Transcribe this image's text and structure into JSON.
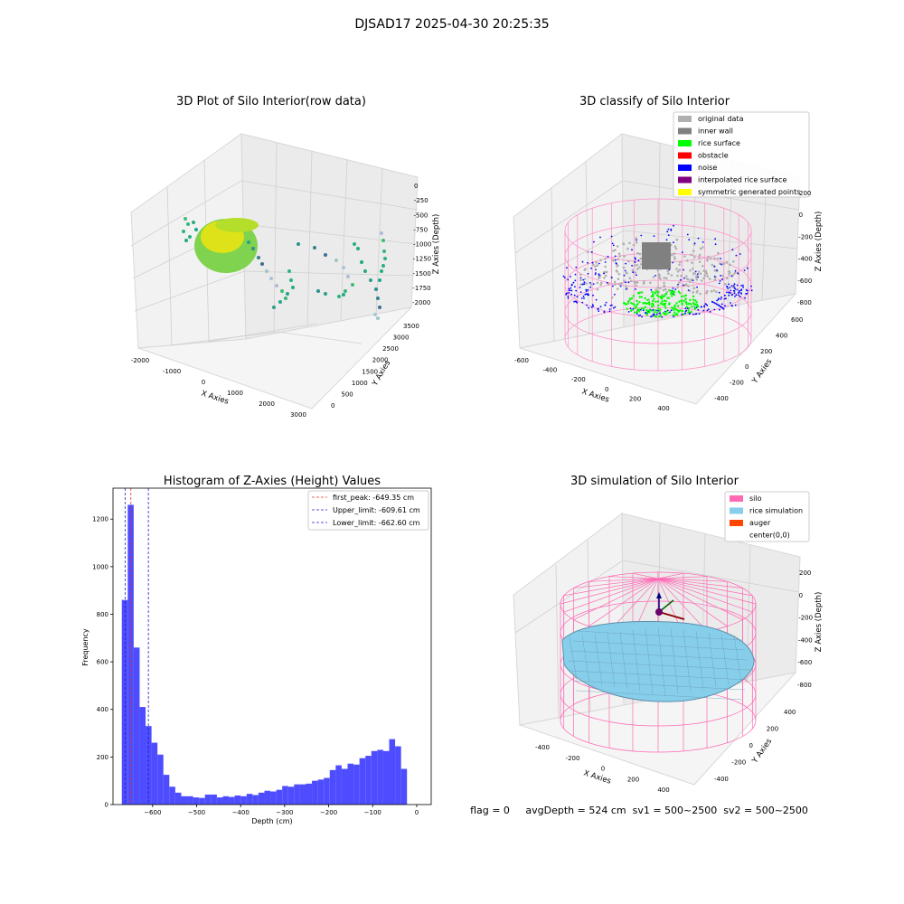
{
  "figure": {
    "suptitle": "DJSAD17 2025-04-30 20:25:35",
    "footer": "flag = 0     avgDepth = 524 cm  sv1 = 500~2500  sv2 = 500~2500"
  },
  "chart_data": [
    {
      "type": "scatter",
      "title": "3D Plot of Silo Interior(row data)",
      "xlabel": "X Axies",
      "ylabel": "Y Axies",
      "zlabel": "Z Axies (Depth)",
      "x_ticks": [
        "-2000",
        "-1000",
        "0",
        "1000",
        "2000",
        "3000"
      ],
      "y_ticks": [
        "0",
        "500",
        "1000",
        "1500",
        "2000",
        "2500",
        "3000",
        "3500"
      ],
      "z_ticks": [
        "0",
        "-250",
        "-500",
        "-750",
        "-1000",
        "-1250",
        "-1500",
        "-1750",
        "-2000"
      ],
      "colormap": "viridis"
    },
    {
      "type": "scatter",
      "title": "3D classify of Silo Interior",
      "xlabel": "X Axies",
      "ylabel": "Y Axies",
      "zlabel": "Z Axies (Depth)",
      "x_ticks": [
        "-600",
        "-400",
        "-200",
        "0",
        "200",
        "400"
      ],
      "y_ticks": [
        "-400",
        "-200",
        "0",
        "200",
        "400",
        "600"
      ],
      "z_ticks": [
        "200",
        "0",
        "-200",
        "-400",
        "-600",
        "-800"
      ],
      "legend": [
        {
          "label": "original data",
          "color": "#b0b0b0"
        },
        {
          "label": "inner wall",
          "color": "#808080"
        },
        {
          "label": "rice surface",
          "color": "#00ff00"
        },
        {
          "label": "obstacle",
          "color": "#ff0000"
        },
        {
          "label": "noise",
          "color": "#0000ff"
        },
        {
          "label": "interpolated rice surface",
          "color": "#800080"
        },
        {
          "label": "symmetric generated points",
          "color": "#ffff00"
        }
      ],
      "legend_position": "upper-right"
    },
    {
      "type": "bar",
      "title": "Histogram of Z-Axies (Height) Values",
      "xlabel": "Depth (cm)",
      "ylabel": "Frequency",
      "bin_width": 13.5,
      "bin_start": -670,
      "values": [
        860,
        1260,
        660,
        410,
        330,
        260,
        210,
        125,
        75,
        50,
        35,
        35,
        30,
        28,
        42,
        42,
        30,
        35,
        32,
        38,
        35,
        45,
        40,
        50,
        58,
        55,
        62,
        78,
        75,
        85,
        85,
        88,
        100,
        105,
        112,
        145,
        165,
        150,
        172,
        168,
        195,
        205,
        225,
        230,
        225,
        275,
        245,
        150
      ],
      "xlim": [
        -690,
        33
      ],
      "ylim": [
        0,
        1330
      ],
      "x_ticks": [
        -600,
        -500,
        -400,
        -300,
        -200,
        -100,
        0
      ],
      "y_ticks": [
        0,
        200,
        400,
        600,
        800,
        1000,
        1200
      ],
      "bar_color": "#4d4dff",
      "vlines": [
        {
          "label": "first_peak: -649.35 cm",
          "value": -649.35,
          "color": "#e03030"
        },
        {
          "label": "Upper_limit: -609.61 cm",
          "value": -609.61,
          "color": "#2020c0"
        },
        {
          "label": "Lower_limit: -662.60 cm",
          "value": -662.6,
          "color": "#2020c0"
        }
      ],
      "legend_position": "upper-right"
    },
    {
      "type": "area",
      "title": "3D simulation of Silo Interior",
      "xlabel": "X Axies",
      "ylabel": "Y Axies",
      "zlabel": "Z Axies (Depth)",
      "x_ticks": [
        "-400",
        "-200",
        "0",
        "200",
        "400"
      ],
      "y_ticks": [
        "-400",
        "-200",
        "0",
        "200",
        "400"
      ],
      "z_ticks": [
        "200",
        "0",
        "-200",
        "-400",
        "-600",
        "-800"
      ],
      "legend": [
        {
          "label": "silo",
          "color": "#ff69b4"
        },
        {
          "label": "rice simulation",
          "color": "#87ceeb"
        },
        {
          "label": "auger",
          "color": "#ff4500"
        },
        {
          "label": "center(0,0)",
          "color": "#ffffff"
        }
      ],
      "legend_position": "upper-right"
    }
  ]
}
